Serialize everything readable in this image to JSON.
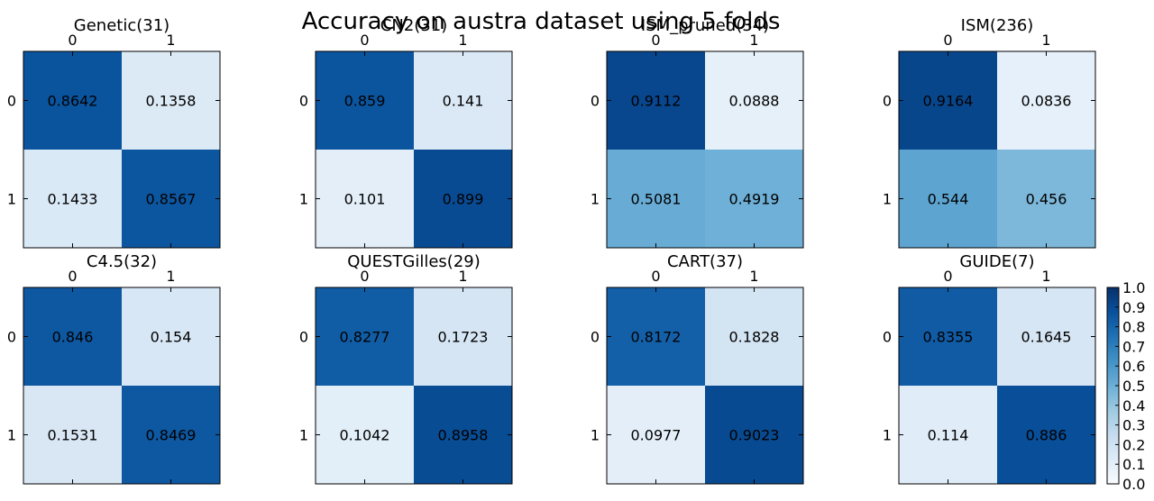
{
  "chart_data": {
    "type": "heatmap",
    "title": "Accuracy on austra dataset using 5 folds",
    "tick_labels": [
      "0",
      "1"
    ],
    "colormap": "Blues",
    "vmin": 0.0,
    "vmax": 1.0,
    "colorbar_ticks": [
      "0.0",
      "0.1",
      "0.2",
      "0.3",
      "0.4",
      "0.5",
      "0.6",
      "0.7",
      "0.8",
      "0.9",
      "1.0"
    ],
    "panels": [
      {
        "title": "Genetic(31)",
        "matrix": [
          [
            0.8642,
            0.1358
          ],
          [
            0.1433,
            0.8567
          ]
        ]
      },
      {
        "title": "CN2(31)",
        "matrix": [
          [
            0.859,
            0.141
          ],
          [
            0.101,
            0.899
          ]
        ]
      },
      {
        "title": "ISM_pruned(34)",
        "matrix": [
          [
            0.9112,
            0.0888
          ],
          [
            0.5081,
            0.4919
          ]
        ]
      },
      {
        "title": "ISM(236)",
        "matrix": [
          [
            0.9164,
            0.0836
          ],
          [
            0.544,
            0.456
          ]
        ]
      },
      {
        "title": "C4.5(32)",
        "matrix": [
          [
            0.846,
            0.154
          ],
          [
            0.1531,
            0.8469
          ]
        ]
      },
      {
        "title": "QUESTGilles(29)",
        "matrix": [
          [
            0.8277,
            0.1723
          ],
          [
            0.1042,
            0.8958
          ]
        ]
      },
      {
        "title": "CART(37)",
        "matrix": [
          [
            0.8172,
            0.1828
          ],
          [
            0.0977,
            0.9023
          ]
        ]
      },
      {
        "title": "GUIDE(7)",
        "matrix": [
          [
            0.8355,
            0.1645
          ],
          [
            0.114,
            0.886
          ]
        ]
      }
    ]
  }
}
